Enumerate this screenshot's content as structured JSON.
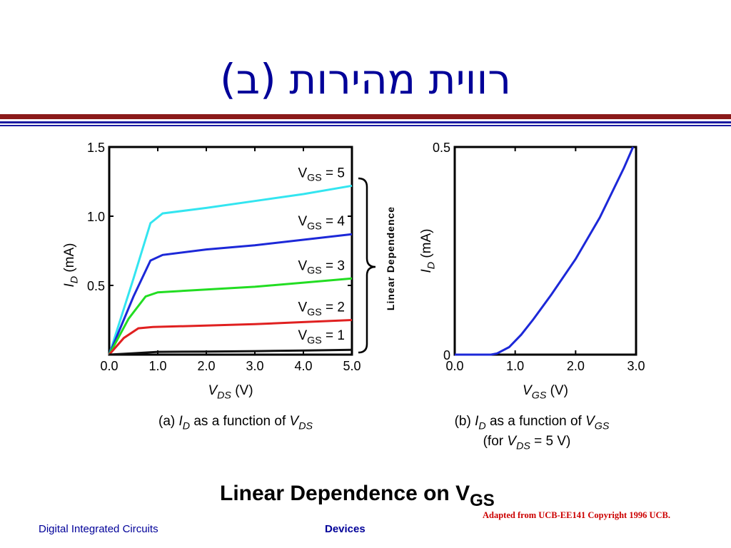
{
  "slide": {
    "title": "רווית מהירות (ב)",
    "bottom_heading": "Linear Dependence on V",
    "bottom_heading_sub": "GS",
    "footer_left": "Digital Integrated Circuits",
    "footer_center": "Devices",
    "credit": "Adapted from UCB-EE141 Copyright 1996 UCB.",
    "brace_label": "Linear Dependence",
    "colors": {
      "title": "#000099",
      "rule_red": "#8b1a1a",
      "rule_blue": "#1a1aa0",
      "credit": "#cc0000"
    }
  },
  "chart_data": [
    {
      "type": "line",
      "caption": [
        "(a) ",
        "I",
        "D",
        " as a function of ",
        "V",
        "DS"
      ],
      "xlabel": [
        "V",
        "DS",
        " (V)"
      ],
      "ylabel": [
        "I",
        "D",
        " (mA)"
      ],
      "xlim": [
        0,
        5
      ],
      "ylim": [
        0,
        1.5
      ],
      "xticks": [
        "0.0",
        "1.0",
        "2.0",
        "3.0",
        "4.0",
        "5.0"
      ],
      "yticks": [
        "0.5",
        "1.0",
        "1.5"
      ],
      "series": [
        {
          "name": "V_GS = 5",
          "label_main": "V",
          "label_sub": "GS",
          "label_tail": " = 5",
          "color": "#33e5f0",
          "points": [
            [
              0,
              0
            ],
            [
              0.5,
              0.55
            ],
            [
              0.85,
              0.95
            ],
            [
              1.1,
              1.02
            ],
            [
              2,
              1.06
            ],
            [
              3,
              1.11
            ],
            [
              4,
              1.16
            ],
            [
              5,
              1.22
            ]
          ]
        },
        {
          "name": "V_GS = 4",
          "label_main": "V",
          "label_sub": "GS",
          "label_tail": " = 4",
          "color": "#1c28d8",
          "points": [
            [
              0,
              0
            ],
            [
              0.5,
              0.42
            ],
            [
              0.85,
              0.68
            ],
            [
              1.1,
              0.72
            ],
            [
              2,
              0.76
            ],
            [
              3,
              0.79
            ],
            [
              4,
              0.83
            ],
            [
              5,
              0.87
            ]
          ]
        },
        {
          "name": "V_GS = 3",
          "label_main": "V",
          "label_sub": "GS",
          "label_tail": " = 3",
          "color": "#22dd22",
          "points": [
            [
              0,
              0
            ],
            [
              0.4,
              0.26
            ],
            [
              0.75,
              0.42
            ],
            [
              1.0,
              0.45
            ],
            [
              2,
              0.47
            ],
            [
              3,
              0.49
            ],
            [
              4,
              0.52
            ],
            [
              5,
              0.55
            ]
          ]
        },
        {
          "name": "V_GS = 2",
          "label_main": "V",
          "label_sub": "GS",
          "label_tail": " = 2",
          "color": "#e02020",
          "points": [
            [
              0,
              0
            ],
            [
              0.3,
              0.12
            ],
            [
              0.6,
              0.19
            ],
            [
              0.9,
              0.2
            ],
            [
              2,
              0.21
            ],
            [
              3,
              0.22
            ],
            [
              4,
              0.235
            ],
            [
              5,
              0.25
            ]
          ]
        },
        {
          "name": "V_GS = 1",
          "label_main": "V",
          "label_sub": "GS",
          "label_tail": " = 1",
          "color": "#111111",
          "points": [
            [
              0,
              0
            ],
            [
              0.5,
              0.01
            ],
            [
              1.0,
              0.02
            ],
            [
              2,
              0.022
            ],
            [
              3,
              0.025
            ],
            [
              4,
              0.03
            ],
            [
              5,
              0.035
            ]
          ]
        }
      ]
    },
    {
      "type": "line",
      "caption": [
        "(b) ",
        "I",
        "D",
        " as a function of ",
        "V",
        "GS"
      ],
      "caption_line2": [
        "(for ",
        "V",
        "DS",
        " = 5 V)"
      ],
      "xlabel": [
        "V",
        "GS",
        " (V)"
      ],
      "ylabel": [
        "I",
        "D",
        " (mA)"
      ],
      "xlim": [
        0,
        3
      ],
      "ylim": [
        0,
        0.5
      ],
      "xticks": [
        "0.0",
        "1.0",
        "2.0",
        "3.0"
      ],
      "yticks": [
        "0",
        "0.5"
      ],
      "series": [
        {
          "color": "#1c28d8",
          "points": [
            [
              0,
              0
            ],
            [
              0.6,
              0
            ],
            [
              0.7,
              0.003
            ],
            [
              0.9,
              0.018
            ],
            [
              1.1,
              0.048
            ],
            [
              1.3,
              0.085
            ],
            [
              1.6,
              0.145
            ],
            [
              2.0,
              0.23
            ],
            [
              2.4,
              0.33
            ],
            [
              2.8,
              0.45
            ],
            [
              2.95,
              0.5
            ]
          ]
        }
      ]
    }
  ]
}
